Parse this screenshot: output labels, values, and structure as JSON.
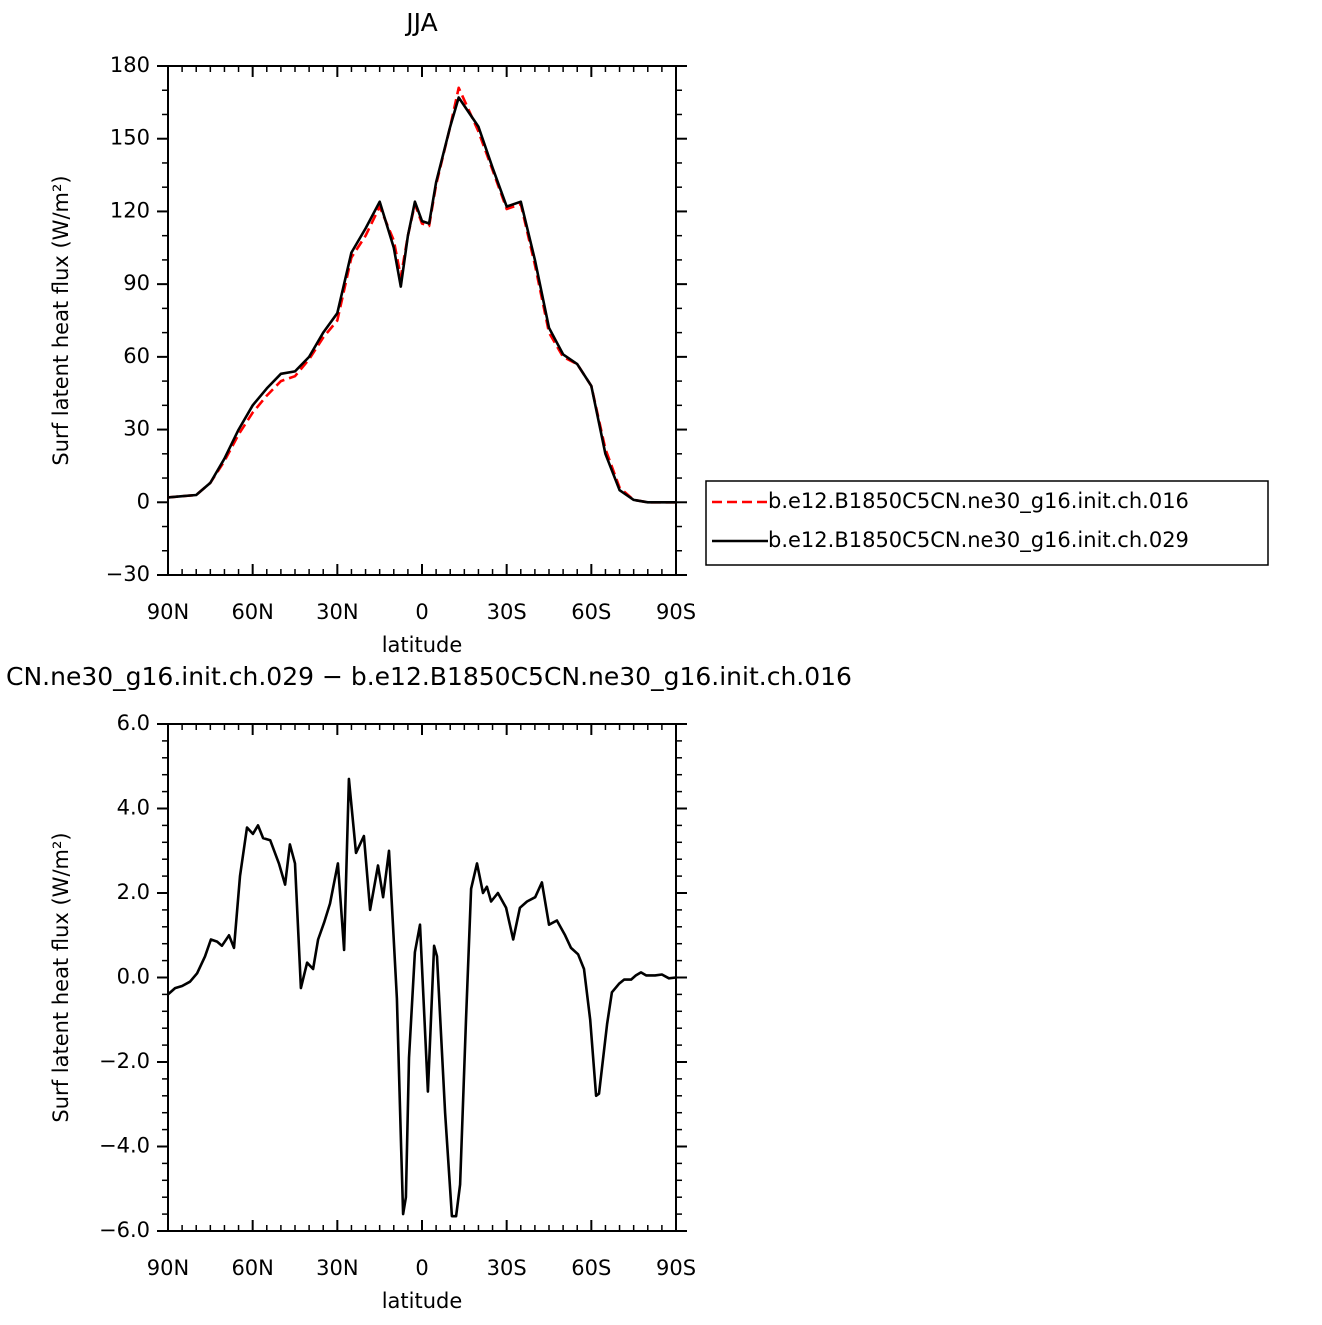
{
  "chart_data": [
    {
      "type": "line",
      "title": "JJA",
      "xlabel": "latitude",
      "ylabel": "Surf latent heat flux (W/m²)",
      "x": [
        90,
        85,
        80,
        75,
        70,
        65,
        60,
        55,
        50,
        45,
        40,
        35,
        30,
        25,
        20,
        15,
        10,
        7.5,
        5,
        2.5,
        0,
        -2.5,
        -5,
        -10,
        -13,
        -20,
        -25,
        -30,
        -35,
        -40,
        -45,
        -50,
        -55,
        -60,
        -65,
        -70,
        -75,
        -80,
        -85,
        -90
      ],
      "xlim": [
        90,
        -90
      ],
      "xticks": [
        {
          "value": 90,
          "label": "90N"
        },
        {
          "value": 60,
          "label": "60N"
        },
        {
          "value": 30,
          "label": "30N"
        },
        0,
        {
          "value": -30,
          "label": "30S"
        },
        {
          "value": -60,
          "label": "60S"
        },
        {
          "value": -90,
          "label": "90S"
        }
      ],
      "ylim": [
        -30,
        180
      ],
      "yticks": [
        {
          "value": -30,
          "label": "−30"
        },
        0,
        30,
        60,
        90,
        120,
        150,
        180
      ],
      "legend": "right",
      "series": [
        {
          "name": "b.e12.B1850C5CN.ne30_g16.init.ch.016",
          "color": "#ff0000",
          "dash": "dashed",
          "values": [
            2,
            2.5,
            3,
            8,
            17,
            28,
            37,
            44,
            50,
            52,
            59,
            68,
            75,
            101,
            110,
            122,
            108,
            93,
            110,
            123,
            115,
            114,
            131,
            155,
            171,
            153,
            137,
            121,
            123,
            98,
            70,
            60,
            57,
            48,
            22,
            6,
            1,
            0,
            0,
            0
          ]
        },
        {
          "name": "b.e12.B1850C5CN.ne30_g16.init.ch.029",
          "color": "#000000",
          "dash": "solid",
          "values": [
            2,
            2.5,
            3,
            8,
            18,
            30,
            40,
            47,
            53,
            54,
            60,
            70,
            78,
            103,
            113,
            124,
            105,
            89,
            110,
            124,
            116,
            115,
            132,
            155,
            167,
            155,
            138,
            122,
            124,
            100,
            72,
            61,
            57,
            48,
            20,
            5,
            1,
            0,
            0,
            0
          ]
        }
      ]
    },
    {
      "type": "line",
      "title": "CN.ne30_g16.init.ch.029 − b.e12.B1850C5CN.ne30_g16.init.ch.016",
      "xlabel": "latitude",
      "ylabel": "Surf latent heat flux (W/m²)",
      "x": [
        90,
        87.5,
        85,
        82.2,
        79.7,
        76.9,
        74.8,
        72.6,
        70.9,
        68.4,
        66.6,
        64.5,
        62,
        59.9,
        58.1,
        56.3,
        53.8,
        50.7,
        48.5,
        46.8,
        45,
        42.9,
        40.7,
        38.6,
        36.8,
        34.7,
        32.6,
        29.8,
        27.6,
        25.9,
        23.4,
        20.6,
        18.4,
        15.6,
        13.8,
        11.7,
        8.9,
        7.4,
        6.7,
        5.7,
        4.6,
        2.5,
        0.7,
        -2.1,
        -4.3,
        -5.3,
        -8.2,
        -10.6,
        -12.1,
        -13.5,
        -15.6,
        -17.4,
        -19.5,
        -21.6,
        -23,
        -24.5,
        -26.9,
        -29.8,
        -32.3,
        -34.7,
        -37.2,
        -40.1,
        -42.5,
        -45,
        -47.8,
        -50.7,
        -52.8,
        -55.3,
        -57.4,
        -59.6,
        -61.7,
        -62.7,
        -65.6,
        -67.3,
        -69.8,
        -71.6,
        -74.1,
        -75.8,
        -77.6,
        -79.4,
        -82.6,
        -85,
        -87.5,
        -90
      ],
      "xlim": [
        90,
        -90
      ],
      "xticks": [
        {
          "value": 90,
          "label": "90N"
        },
        {
          "value": 60,
          "label": "60N"
        },
        {
          "value": 30,
          "label": "30N"
        },
        0,
        {
          "value": -30,
          "label": "30S"
        },
        {
          "value": -60,
          "label": "60S"
        },
        {
          "value": -90,
          "label": "90S"
        }
      ],
      "ylim": [
        -6,
        6
      ],
      "yticks": [
        {
          "value": -6,
          "label": "−6.0"
        },
        {
          "value": -4,
          "label": "−4.0"
        },
        {
          "value": -2,
          "label": "−2.0"
        },
        {
          "value": 0,
          "label": "0.0"
        },
        {
          "value": 2,
          "label": "2.0"
        },
        {
          "value": 4,
          "label": "4.0"
        },
        {
          "value": 6,
          "label": "6.0"
        }
      ],
      "series": [
        {
          "color": "#000000",
          "dash": "solid",
          "values": [
            -0.4,
            -0.25,
            -0.2,
            -0.1,
            0.1,
            0.5,
            0.9,
            0.85,
            0.75,
            1.0,
            0.7,
            2.4,
            3.55,
            3.4,
            3.6,
            3.3,
            3.25,
            2.7,
            2.2,
            3.15,
            2.7,
            -0.25,
            0.35,
            0.2,
            0.9,
            1.3,
            1.75,
            2.7,
            0.65,
            4.7,
            2.95,
            3.35,
            1.6,
            2.65,
            1.9,
            3.0,
            -0.5,
            -4.0,
            -5.6,
            -5.2,
            -1.9,
            0.6,
            1.25,
            -2.7,
            0.75,
            0.5,
            -3.2,
            -5.65,
            -5.65,
            -4.9,
            -1.0,
            2.1,
            2.7,
            2.0,
            2.15,
            1.8,
            2.0,
            1.65,
            0.9,
            1.65,
            1.8,
            1.9,
            2.25,
            1.25,
            1.35,
            1.0,
            0.7,
            0.55,
            0.2,
            -1.0,
            -2.8,
            -2.75,
            -1.1,
            -0.35,
            -0.15,
            -0.05,
            -0.05,
            0.05,
            0.12,
            0.05,
            0.05,
            0.07,
            -0.02,
            0
          ]
        }
      ]
    }
  ]
}
